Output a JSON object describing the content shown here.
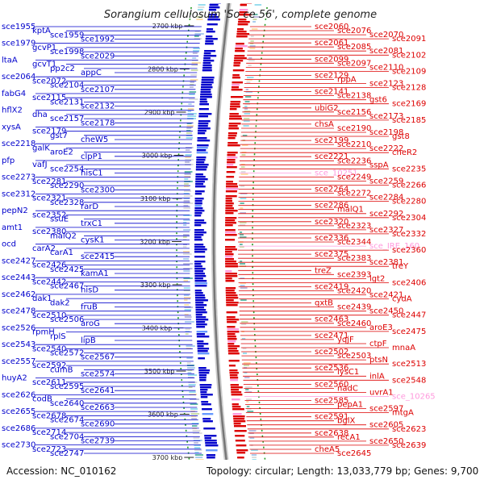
{
  "title": "Sorangium cellulosum 'So ce 56', complete genome",
  "accession": "Accession: NC_010162",
  "topology": "Topology: circular; Length: 13,033,779 bp; Genes: 9,700",
  "colors": {
    "left_strand": "#0000cc",
    "right_strand": "#dd0000",
    "pseudo": "#ff99dd",
    "backbone": "#777777",
    "tick": "#229922"
  },
  "ticks": [
    "2700 kbp",
    "2800 kbp",
    "2900 kbp",
    "3000 kbp",
    "3100 kbp",
    "3200 kbp",
    "3300 kbp",
    "3400 kbp",
    "3500 kbp",
    "3600 kbp",
    "3700 kbp"
  ],
  "left_labels": [
    "sce1955",
    "kptA",
    "sce1959",
    "sce1992",
    "sce1979",
    "gcvP1",
    "sce1998",
    "sce2029",
    "ltaA",
    "gcvT1",
    "pp2c2",
    "appC",
    "sce2064",
    "sce2072",
    "sce2104",
    "sce2107",
    "fabG4",
    "sce2115",
    "sce2131",
    "sce2132",
    "hflX2",
    "dha",
    "sce2157",
    "sce2178",
    "xysA",
    "sce2179",
    "gst7",
    "cheW5",
    "sce2218",
    "galK",
    "aroE2",
    "clpP1",
    "pfp",
    "vafJ",
    "sce2254",
    "hisC1",
    "sce2273",
    "sce2281",
    "sce2290",
    "sce2300",
    "sce2312",
    "sce2321",
    "sce2328",
    "rarD",
    "pepN2",
    "sce2352",
    "ssuE",
    "trxC1",
    "amt1",
    "sce2380",
    "malQ2",
    "cysK1",
    "ocd",
    "carA2",
    "carA1",
    "sce2415",
    "sce2427",
    "sce2426",
    "sce2425",
    "kamA1",
    "sce2443",
    "sce2442",
    "sce2467",
    "hisD",
    "sce2462",
    "dak1",
    "dak2",
    "fruB",
    "sce2478",
    "sce2510",
    "sce2506",
    "aroG",
    "sce2526",
    "rpmH",
    "rplS",
    "lipB",
    "sce2543",
    "sce2540",
    "sce2572",
    "sce2567",
    "sce2557",
    "sce2592",
    "cumB",
    "sce2574",
    "huyA2",
    "sce2611",
    "sce2595",
    "sce2641",
    "sce2626",
    "codB",
    "sce2640",
    "sce2663",
    "sce2655",
    "sce2678",
    "sce2674",
    "sce2690",
    "sce2686",
    "sce2714",
    "sce2704",
    "sce2739",
    "sce2730",
    "sce2723",
    "sce2747"
  ],
  "right_labels": [
    "sce2060",
    "sce2076",
    "sce2070",
    "sce2091",
    "sce2061",
    "sce2085",
    "sce2081",
    "sce2102",
    "sce2099",
    "sce2097",
    "sce2110",
    "sce2109",
    "sce2129",
    "rppA",
    "sce2123",
    "sce2128",
    "sce2141",
    "sce2138",
    "gst6",
    "sce2169",
    "ubiG2",
    "sce2156",
    "sce2173",
    "sce2185",
    "chsA",
    "sce2190",
    "sce2198",
    "gst8",
    "sce2199",
    "sce2210",
    "sce2222",
    "cheR2",
    "sce2221",
    "sce2236",
    "sspA",
    "sce2235",
    "sce_10251",
    "sce2249",
    "sce2259",
    "sce2266",
    "sce2264",
    "sce2272",
    "sce2284",
    "sce2280",
    "sce2286",
    "malQ1",
    "sce2292",
    "sce2304",
    "sce2320",
    "sce2323",
    "sce2327",
    "sce2332",
    "sce2336",
    "sce2344",
    "sce_IRE_160",
    "sce2360",
    "sce2375",
    "sce2383",
    "sce2381",
    "treY",
    "treZ",
    "sce2393",
    "lgt2",
    "sce2406",
    "sce2419",
    "sce2420",
    "sce2421",
    "cydA",
    "qxtB",
    "sce2439",
    "sce2450",
    "sce2447",
    "sce2463",
    "sce2460",
    "aroE3",
    "sce2475",
    "sce2471",
    "yqjF",
    "ctpF",
    "mnaA",
    "sce2502",
    "sce2503",
    "ptsN",
    "sce2513",
    "sce2536",
    "lysC1",
    "inlA",
    "sce2548",
    "sce2560",
    "nadC",
    "uvrA1",
    "sce_10265",
    "sce2585",
    "pepA1",
    "sce2597",
    "mtgA",
    "sce2591",
    "bglX",
    "sce2605",
    "sce2623",
    "sce2638",
    "recA1",
    "sce2650",
    "sce2639",
    "cheA5",
    "sce2645"
  ]
}
